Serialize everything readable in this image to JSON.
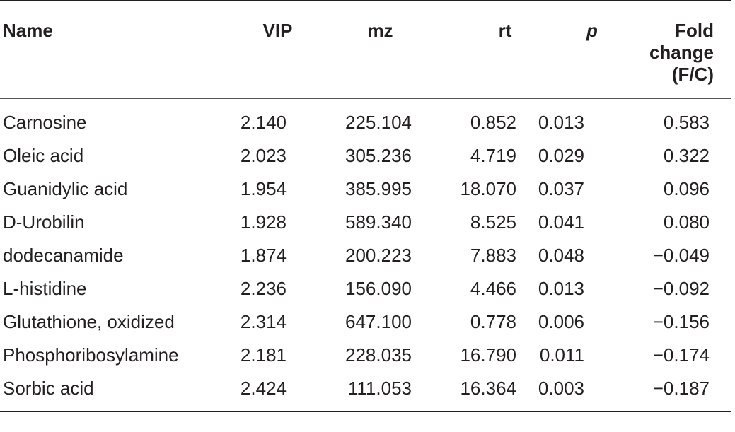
{
  "table": {
    "headers": {
      "name": "Name",
      "vip": "VIP",
      "mz": "mz",
      "rt": "rt",
      "p": "p",
      "fold_change_line1": "Fold",
      "fold_change_line2": "change",
      "fold_change_line3": "(F/C)"
    },
    "rows": [
      {
        "name": "Carnosine",
        "vip": "2.140",
        "mz": "225.104",
        "rt": "0.852",
        "p": "0.013",
        "fc": "0.583"
      },
      {
        "name": "Oleic acid",
        "vip": "2.023",
        "mz": "305.236",
        "rt": "4.719",
        "p": "0.029",
        "fc": "0.322"
      },
      {
        "name": "Guanidylic acid",
        "vip": "1.954",
        "mz": "385.995",
        "rt": "18.070",
        "p": "0.037",
        "fc": "0.096"
      },
      {
        "name": "D-Urobilin",
        "vip": "1.928",
        "mz": "589.340",
        "rt": "8.525",
        "p": "0.041",
        "fc": "0.080"
      },
      {
        "name": "dodecanamide",
        "vip": "1.874",
        "mz": "200.223",
        "rt": "7.883",
        "p": "0.048",
        "fc": "−0.049"
      },
      {
        "name": "L-histidine",
        "vip": "2.236",
        "mz": "156.090",
        "rt": "4.466",
        "p": "0.013",
        "fc": "−0.092"
      },
      {
        "name": "Glutathione, oxidized",
        "vip": "2.314",
        "mz": "647.100",
        "rt": "0.778",
        "p": "0.006",
        "fc": "−0.156"
      },
      {
        "name": "Phosphoribosylamine",
        "vip": "2.181",
        "mz": "228.035",
        "rt": "16.790",
        "p": "0.011",
        "fc": "−0.174"
      },
      {
        "name": "Sorbic acid",
        "vip": "2.424",
        "mz": "111.053",
        "rt": "16.364",
        "p": "0.003",
        "fc": "−0.187"
      }
    ]
  }
}
